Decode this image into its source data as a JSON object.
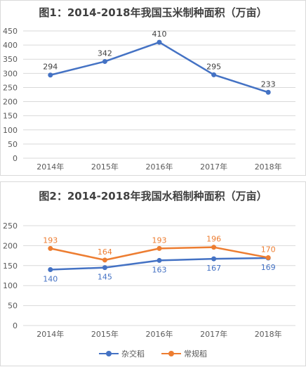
{
  "colors": {
    "blue": "#4472C4",
    "orange": "#ED7D31",
    "grid": "#d9d9d9",
    "text": "#595959"
  },
  "chart_data": [
    {
      "type": "line",
      "title": "图1：2014-2018年我国玉米制种面积（万亩）",
      "categories": [
        "2014年",
        "2015年",
        "2016年",
        "2017年",
        "2018年"
      ],
      "series": [
        {
          "values": [
            294,
            342,
            410,
            295,
            233
          ],
          "color": "#4472C4"
        }
      ],
      "ylim": [
        0,
        450
      ],
      "yticks": [
        0,
        50,
        100,
        150,
        200,
        250,
        300,
        350,
        400,
        450
      ],
      "grid": true
    },
    {
      "type": "line",
      "title": "图2：2014-2018年我国水稻制种面积（万亩）",
      "categories": [
        "2014年",
        "2015年",
        "2016年",
        "2017年",
        "2018年"
      ],
      "series": [
        {
          "name": "杂交稻",
          "values": [
            140,
            145,
            163,
            167,
            169
          ],
          "color": "#4472C4",
          "label_pos": "below"
        },
        {
          "name": "常规稻",
          "values": [
            193,
            164,
            193,
            196,
            170
          ],
          "color": "#ED7D31",
          "label_pos": "above"
        }
      ],
      "ylim": [
        0,
        250
      ],
      "yticks": [
        0,
        50,
        100,
        150,
        200,
        250
      ],
      "grid": true,
      "legend": "bottom"
    }
  ]
}
